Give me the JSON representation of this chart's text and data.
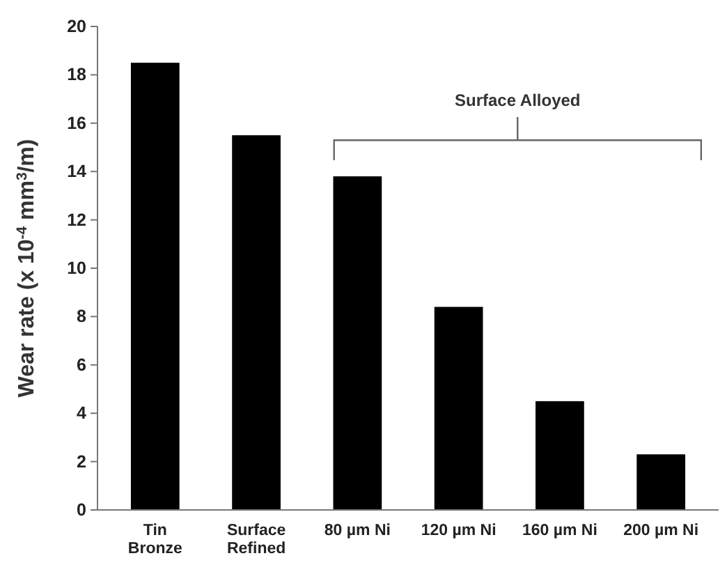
{
  "chart_data": {
    "type": "bar",
    "ylabel": "Wear rate (x 10$^{-4}$ mm$^{3}$/m)",
    "categories": [
      "Tin\nBronze",
      "Surface\nRefined",
      "80 µm Ni",
      "120 µm Ni",
      "160 µm Ni",
      "200 µm Ni"
    ],
    "values": [
      18.5,
      15.5,
      13.8,
      8.4,
      4.5,
      2.3
    ],
    "color": "#000000",
    "ylim": [
      0,
      20
    ],
    "yticks": [
      0,
      2,
      4,
      6,
      8,
      10,
      12,
      14,
      16,
      18,
      20
    ],
    "grid": false,
    "annotations": [
      "Surface Alloyed"
    ]
  }
}
